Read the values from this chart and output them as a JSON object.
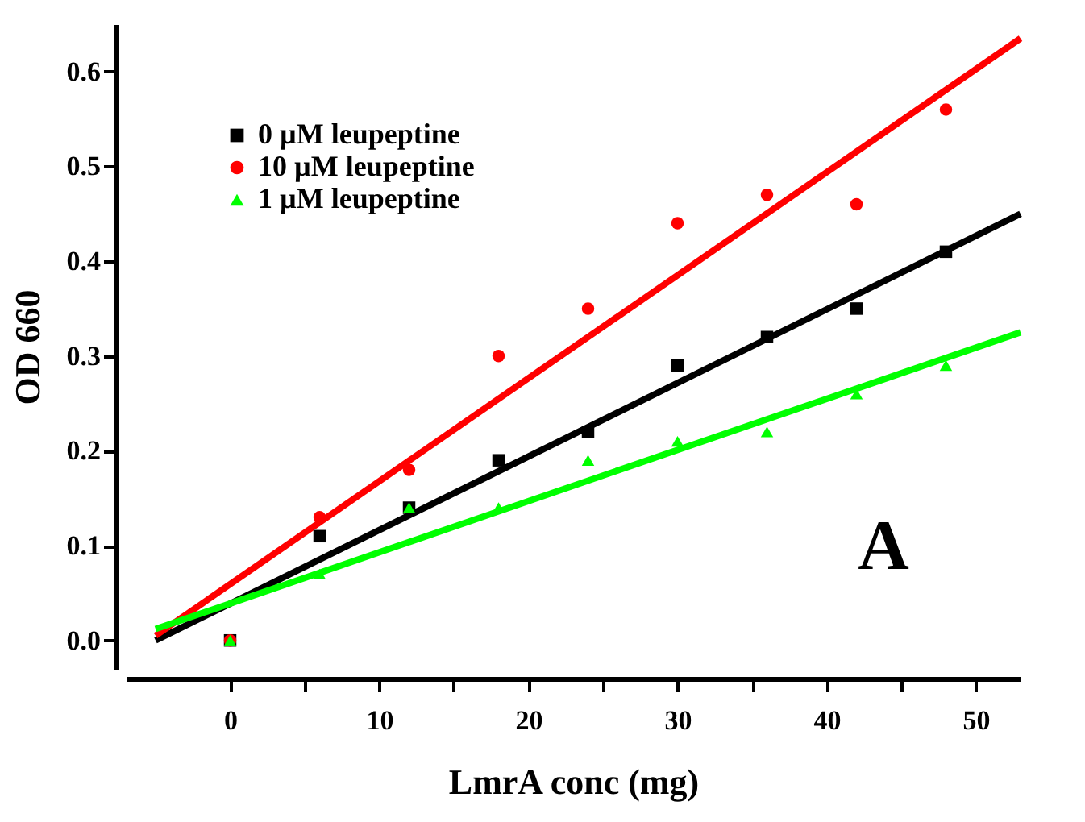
{
  "chart_data": {
    "type": "scatter",
    "xlabel": "LmrA conc (mg)",
    "ylabel": "OD 660",
    "xlim": [
      -7,
      53
    ],
    "ylim": [
      -0.03,
      0.65
    ],
    "xticks": [
      0,
      {
        "value": 5,
        "label": null
      },
      10,
      {
        "value": 15,
        "label": null
      },
      20,
      {
        "value": 25,
        "label": null
      },
      30,
      {
        "value": 35,
        "label": null
      },
      40,
      {
        "value": 45,
        "label": null
      },
      50
    ],
    "yticks": [
      {
        "value": 0,
        "label": "0.0"
      },
      0.1,
      0.2,
      0.3,
      0.4,
      0.5,
      0.6
    ],
    "legend": "top left",
    "grid": false,
    "annotations": [
      "A"
    ],
    "series": [
      {
        "name": "0 µM leupeptine",
        "color": "#000000",
        "marker": "square",
        "x": [
          0,
          6,
          12,
          18,
          24,
          30,
          36,
          42,
          48
        ],
        "values": [
          0.0,
          0.11,
          0.14,
          0.19,
          0.22,
          0.29,
          0.32,
          0.35,
          0.41
        ]
      },
      {
        "name": "10 µM leupeptine",
        "color": "#ff0000",
        "marker": "circle",
        "x": [
          0,
          6,
          12,
          18,
          24,
          30,
          36,
          42,
          48
        ],
        "values": [
          0.0,
          0.13,
          0.18,
          0.3,
          0.35,
          0.44,
          0.47,
          0.46,
          0.56
        ]
      },
      {
        "name": "1 µM leupeptine",
        "color": "#00ff00",
        "marker": "triangle",
        "x": [
          0,
          6,
          12,
          18,
          24,
          30,
          36,
          42,
          48
        ],
        "values": [
          0.0,
          0.07,
          0.14,
          0.14,
          0.19,
          0.21,
          0.22,
          0.26,
          0.29
        ]
      },
      {
        "type": "line",
        "color": "#000000",
        "x": [
          -5,
          53
        ],
        "values": [
          0.0,
          0.45
        ]
      },
      {
        "type": "line",
        "color": "#ff0000",
        "x": [
          -5,
          53
        ],
        "values": [
          0.005,
          0.635
        ]
      },
      {
        "type": "line",
        "color": "#00ff00",
        "x": [
          -5,
          53
        ],
        "values": [
          0.012,
          0.325
        ]
      }
    ]
  }
}
